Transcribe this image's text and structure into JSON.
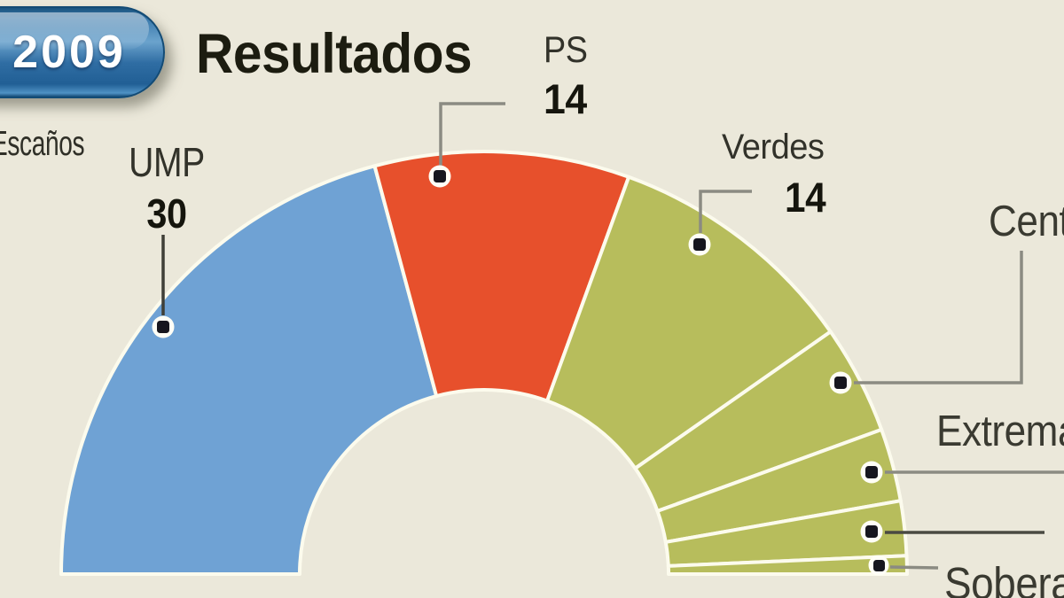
{
  "badge": {
    "year": "2009"
  },
  "title": "Resultados",
  "units_label": "Escaños",
  "chart_data": {
    "type": "parliament-halfdonut",
    "title": "Resultados",
    "units": "Escaños",
    "total_seats": 72,
    "arc_degrees": 180,
    "direction": "left-to-right",
    "legend_position": "callouts",
    "series": [
      {
        "label": "UMP",
        "seats": 30,
        "value_label": "30",
        "color": "#6fa2d4",
        "label_truncated": false
      },
      {
        "label": "PS",
        "seats": 14,
        "value_label": "14",
        "color": "#e7502c",
        "label_truncated": false
      },
      {
        "label": "Verdes",
        "seats": 14,
        "value_label": "14",
        "color": "#b7bd5c",
        "label_truncated": false
      },
      {
        "label": "Cent",
        "seats": 6,
        "value_label": "",
        "color": "#b7bd5c",
        "label_truncated": true
      },
      {
        "label": "Extrema",
        "seats": 4,
        "value_label": "",
        "color": "#b7bd5c",
        "label_truncated": true
      },
      {
        "label": "",
        "seats": 3,
        "value_label": "",
        "color": "#b7bd5c",
        "label_truncated": true
      },
      {
        "label": "Sobera",
        "seats": 1,
        "value_label": "",
        "color": "#b7bd5c",
        "label_truncated": true
      }
    ],
    "colors": {
      "background": "#ebe8da",
      "divider": "#fcfbed",
      "callout_line_gray": "#8b8b82",
      "callout_line_dark": "#3f3f37",
      "callout_dot": "#16161e",
      "badge_blue": "#2f6da3"
    }
  }
}
